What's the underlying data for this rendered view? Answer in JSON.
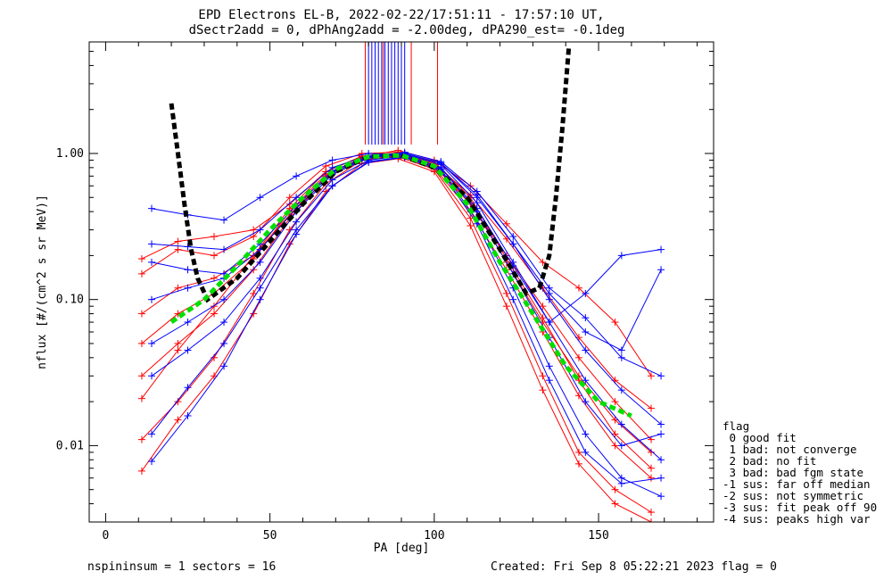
{
  "header": {
    "title_line1": "EPD Electrons EL-B, 2022-02-22/17:51:11 - 17:57:10 UT,",
    "title_line2": "dSectr2add = 0, dPhAng2add = -2.00deg, dPA290_est=  -0.1deg"
  },
  "footer": {
    "left": "nspininsum =  1  sectors = 16",
    "right": "Created: Fri Sep  8 05:22:21 2023   flag = 0"
  },
  "legend": {
    "title": "flag",
    "items": [
      " 0 good fit",
      " 1 bad: not converge",
      " 2 bad: no fit",
      " 3 bad: bad fgm state",
      "-1 sus: far off median",
      "-2 sus: not symmetric",
      "-3 sus: fit peak off 90",
      "-4 sus: peaks high var"
    ]
  },
  "colors": {
    "red": "#ff0000",
    "blue": "#0000ff",
    "green": "#00e000",
    "black": "#000000"
  },
  "chart_data": {
    "type": "line",
    "xlabel": "PA [deg]",
    "ylabel": "nflux [#/(cm^2 s sr MeV)]",
    "xlim": [
      -5,
      185
    ],
    "ylim": [
      0.003,
      5.8
    ],
    "yscale": "log",
    "x_ticks": [
      0,
      50,
      100,
      150
    ],
    "x_tick_labels": [
      "0",
      "50",
      "100",
      "150"
    ],
    "y_ticks": [
      0.01,
      0.1,
      1.0
    ],
    "y_tick_labels": [
      "0.01",
      "0.10",
      "1.00"
    ],
    "grid": false,
    "legend_position": "right, outside plot",
    "spike_top": 5.8,
    "spikes": {
      "blue": [
        80,
        81,
        82,
        83,
        84,
        85,
        86,
        87,
        88,
        89,
        90,
        91
      ],
      "red": [
        79,
        84.5,
        93,
        101
      ]
    },
    "series": [
      {
        "color": "red",
        "style": "thin",
        "x": [
          11,
          22,
          33,
          45,
          56,
          67,
          78,
          89,
          100,
          111,
          122,
          133,
          144,
          155,
          166
        ],
        "y": [
          0.021,
          0.045,
          0.09,
          0.2,
          0.42,
          0.75,
          0.96,
          1.0,
          0.88,
          0.5,
          0.19,
          0.075,
          0.028,
          0.012,
          0.007
        ]
      },
      {
        "color": "red",
        "style": "thin",
        "x": [
          11,
          22,
          33,
          45,
          56,
          67,
          78,
          89,
          100,
          111,
          122,
          133,
          144,
          155,
          166
        ],
        "y": [
          0.15,
          0.22,
          0.2,
          0.27,
          0.5,
          0.82,
          1.0,
          1.02,
          0.85,
          0.52,
          0.26,
          0.12,
          0.055,
          0.028,
          0.018
        ]
      },
      {
        "color": "red",
        "style": "thin",
        "x": [
          11,
          22,
          33,
          45,
          56,
          67,
          78,
          89,
          100,
          111,
          122,
          133,
          144,
          155,
          166
        ],
        "y": [
          0.011,
          0.02,
          0.04,
          0.11,
          0.3,
          0.62,
          0.9,
          0.95,
          0.78,
          0.36,
          0.11,
          0.03,
          0.009,
          0.005,
          0.0035
        ]
      },
      {
        "color": "red",
        "style": "thin",
        "x": [
          11,
          22,
          33,
          45,
          56,
          67,
          78,
          89,
          100,
          111,
          122,
          133,
          144,
          155,
          166
        ],
        "y": [
          0.08,
          0.12,
          0.14,
          0.2,
          0.38,
          0.7,
          0.92,
          0.98,
          0.82,
          0.45,
          0.2,
          0.09,
          0.04,
          0.02,
          0.011
        ]
      },
      {
        "color": "red",
        "style": "thin",
        "x": [
          11,
          22,
          33,
          45,
          56,
          67,
          78,
          89,
          100,
          111,
          122,
          133,
          144,
          155,
          166
        ],
        "y": [
          0.03,
          0.05,
          0.08,
          0.16,
          0.36,
          0.68,
          0.9,
          0.97,
          0.8,
          0.4,
          0.16,
          0.06,
          0.022,
          0.01,
          0.006
        ]
      },
      {
        "color": "red",
        "style": "thin",
        "x": [
          11,
          22,
          33,
          45,
          56,
          67,
          78,
          89,
          100,
          111,
          122,
          133,
          144,
          155,
          166
        ],
        "y": [
          0.19,
          0.25,
          0.27,
          0.3,
          0.45,
          0.75,
          0.95,
          1.05,
          0.9,
          0.6,
          0.33,
          0.18,
          0.12,
          0.07,
          0.03
        ]
      },
      {
        "color": "red",
        "style": "thin",
        "x": [
          11,
          22,
          33,
          45,
          56,
          67,
          78,
          89,
          100,
          111,
          122,
          133,
          144,
          155,
          166
        ],
        "y": [
          0.0067,
          0.015,
          0.03,
          0.08,
          0.24,
          0.55,
          0.85,
          0.92,
          0.75,
          0.32,
          0.09,
          0.024,
          0.0075,
          0.004,
          0.003
        ]
      },
      {
        "color": "red",
        "style": "thin",
        "x": [
          11,
          22,
          33,
          45,
          56,
          67,
          78,
          89,
          100,
          111,
          122,
          133,
          144,
          155,
          166
        ],
        "y": [
          0.05,
          0.08,
          0.11,
          0.19,
          0.4,
          0.72,
          0.93,
          0.99,
          0.84,
          0.46,
          0.18,
          0.07,
          0.03,
          0.015,
          0.009
        ]
      },
      {
        "color": "blue",
        "style": "thin",
        "x": [
          14,
          25,
          36,
          47,
          58,
          69,
          80,
          91,
          102,
          113,
          124,
          135,
          146,
          157,
          169
        ],
        "y": [
          0.42,
          0.38,
          0.35,
          0.5,
          0.7,
          0.9,
          1.0,
          0.98,
          0.8,
          0.42,
          0.17,
          0.07,
          0.11,
          0.2,
          0.22
        ]
      },
      {
        "color": "blue",
        "style": "thin",
        "x": [
          14,
          25,
          36,
          47,
          58,
          69,
          80,
          91,
          102,
          113,
          124,
          135,
          146,
          157,
          169
        ],
        "y": [
          0.012,
          0.025,
          0.05,
          0.12,
          0.3,
          0.6,
          0.88,
          0.95,
          0.78,
          0.35,
          0.12,
          0.035,
          0.012,
          0.006,
          0.0045
        ]
      },
      {
        "color": "blue",
        "style": "thin",
        "x": [
          14,
          25,
          36,
          47,
          58,
          69,
          80,
          91,
          102,
          113,
          124,
          135,
          146,
          157,
          169
        ],
        "y": [
          0.24,
          0.23,
          0.22,
          0.3,
          0.5,
          0.8,
          0.97,
          1.0,
          0.86,
          0.5,
          0.24,
          0.11,
          0.06,
          0.045,
          0.16
        ]
      },
      {
        "color": "blue",
        "style": "thin",
        "x": [
          14,
          25,
          36,
          47,
          58,
          69,
          80,
          91,
          102,
          113,
          124,
          135,
          146,
          157,
          169
        ],
        "y": [
          0.05,
          0.07,
          0.1,
          0.18,
          0.4,
          0.72,
          0.93,
          0.99,
          0.84,
          0.46,
          0.18,
          0.07,
          0.028,
          0.014,
          0.008
        ]
      },
      {
        "color": "blue",
        "style": "thin",
        "x": [
          14,
          25,
          36,
          47,
          58,
          69,
          80,
          91,
          102,
          113,
          124,
          135,
          146,
          157,
          169
        ],
        "y": [
          0.0078,
          0.016,
          0.035,
          0.1,
          0.28,
          0.6,
          0.87,
          0.94,
          0.76,
          0.33,
          0.1,
          0.028,
          0.009,
          0.0055,
          0.006
        ]
      },
      {
        "color": "blue",
        "style": "thin",
        "x": [
          14,
          25,
          36,
          47,
          58,
          69,
          80,
          91,
          102,
          113,
          124,
          135,
          146,
          157,
          169
        ],
        "y": [
          0.1,
          0.12,
          0.14,
          0.22,
          0.42,
          0.74,
          0.94,
          1.0,
          0.86,
          0.52,
          0.24,
          0.1,
          0.045,
          0.024,
          0.014
        ]
      },
      {
        "color": "blue",
        "style": "thin",
        "x": [
          14,
          25,
          36,
          47,
          58,
          69,
          80,
          91,
          102,
          113,
          124,
          135,
          146,
          157,
          169
        ],
        "y": [
          0.03,
          0.045,
          0.07,
          0.14,
          0.34,
          0.66,
          0.9,
          0.97,
          0.8,
          0.4,
          0.15,
          0.055,
          0.02,
          0.01,
          0.012
        ]
      },
      {
        "color": "blue",
        "style": "thin",
        "x": [
          14,
          25,
          36,
          47,
          58,
          69,
          80,
          91,
          102,
          113,
          124,
          135,
          146,
          157,
          169
        ],
        "y": [
          0.18,
          0.16,
          0.15,
          0.24,
          0.44,
          0.76,
          0.95,
          1.02,
          0.88,
          0.55,
          0.27,
          0.12,
          0.075,
          0.04,
          0.03
        ]
      },
      {
        "color": "black",
        "style": "dashed-thick",
        "x": [
          20,
          22,
          24,
          26,
          28,
          31,
          40,
          50,
          60,
          70,
          80,
          90,
          100,
          110,
          120,
          128,
          132,
          135,
          137,
          139,
          141
        ],
        "y": [
          2.2,
          1.0,
          0.45,
          0.22,
          0.14,
          0.1,
          0.14,
          0.25,
          0.45,
          0.75,
          0.95,
          0.97,
          0.8,
          0.5,
          0.22,
          0.11,
          0.12,
          0.2,
          0.5,
          1.5,
          5.5
        ]
      },
      {
        "color": "green",
        "style": "dashed-thick",
        "x": [
          20,
          30,
          40,
          50,
          60,
          70,
          80,
          90,
          100,
          110,
          120,
          130,
          140,
          150,
          160
        ],
        "y": [
          0.07,
          0.1,
          0.17,
          0.3,
          0.5,
          0.78,
          0.95,
          0.97,
          0.82,
          0.45,
          0.18,
          0.08,
          0.035,
          0.02,
          0.016
        ]
      }
    ]
  }
}
